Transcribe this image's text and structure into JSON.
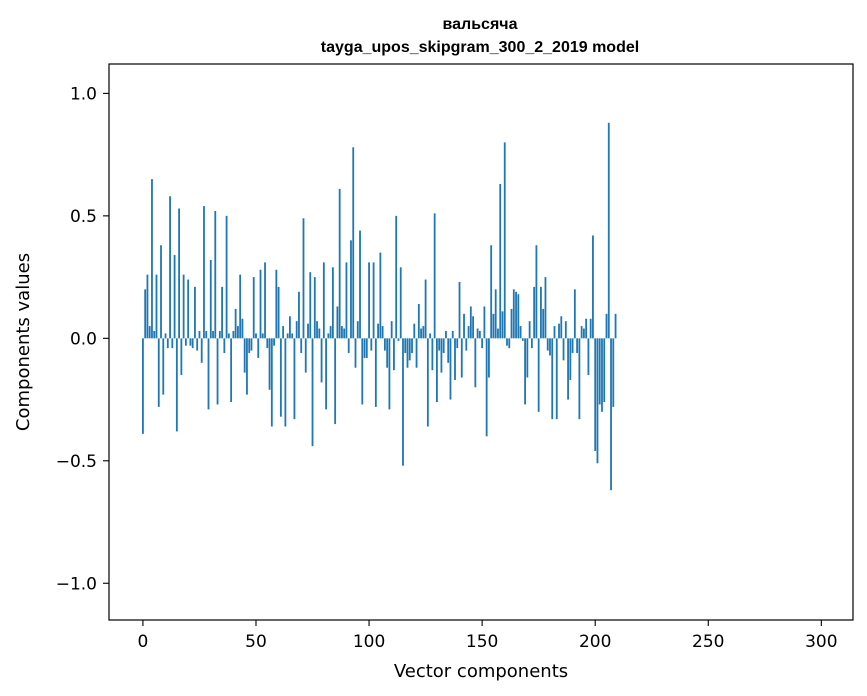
{
  "chart_data": {
    "type": "bar",
    "title": "вальсяча",
    "subtitle": "tayga_upos_skipgram_300_2_2019 model",
    "xlabel": "Vector components",
    "ylabel": "Components values",
    "xlim": [
      -15,
      314
    ],
    "ylim": [
      -1.15,
      1.12
    ],
    "xticks": [
      0,
      50,
      100,
      150,
      200,
      250,
      300
    ],
    "xtick_labels": [
      "0",
      "50",
      "100",
      "150",
      "200",
      "250",
      "300"
    ],
    "yticks": [
      -1.0,
      -0.5,
      0.0,
      0.5,
      1.0
    ],
    "ytick_labels": [
      "−1.0",
      "−0.5",
      "0.0",
      "0.5",
      "1.0"
    ],
    "bar_color": "#1f77b4",
    "grid": false,
    "values": [
      -0.39,
      0.2,
      0.26,
      0.05,
      0.65,
      0.03,
      0.26,
      -0.28,
      0.38,
      -0.23,
      0.02,
      -0.04,
      0.58,
      -0.04,
      0.34,
      -0.38,
      0.53,
      -0.15,
      0.26,
      -0.03,
      0.24,
      -0.03,
      -0.04,
      0.21,
      -0.05,
      0.03,
      -0.1,
      0.54,
      0.03,
      -0.29,
      0.32,
      0.03,
      0.52,
      -0.27,
      0.03,
      0.21,
      -0.06,
      0.5,
      0.02,
      -0.26,
      0.03,
      0.12,
      0.05,
      0.26,
      0.08,
      -0.14,
      -0.23,
      -0.06,
      -0.05,
      0.25,
      0.02,
      -0.08,
      0.28,
      0.02,
      0.31,
      -0.04,
      -0.21,
      -0.36,
      -0.03,
      0.28,
      0.21,
      -0.32,
      0.05,
      -0.36,
      0.02,
      0.09,
      0.02,
      -0.33,
      0.07,
      0.19,
      -0.06,
      0.49,
      -0.14,
      0.06,
      0.27,
      -0.44,
      0.25,
      0.07,
      0.04,
      -0.18,
      0.31,
      -0.29,
      0.02,
      0.05,
      0.29,
      -0.35,
      0.13,
      0.61,
      0.05,
      0.04,
      0.31,
      -0.06,
      0.4,
      0.78,
      -0.12,
      0.07,
      0.44,
      -0.27,
      -0.08,
      -0.08,
      0.31,
      -0.05,
      0.31,
      -0.28,
      0.06,
      0.35,
      0.05,
      -0.05,
      -0.12,
      -0.29,
      0.07,
      -0.13,
      0.5,
      -0.01,
      0.29,
      -0.52,
      -0.06,
      -0.12,
      -0.09,
      -0.06,
      0.06,
      -0.12,
      0.14,
      0.04,
      0.05,
      0.24,
      -0.36,
      0.02,
      -0.13,
      0.51,
      -0.26,
      -0.05,
      -0.14,
      -0.06,
      0.03,
      -0.1,
      -0.25,
      0.03,
      -0.17,
      -0.04,
      0.23,
      -0.16,
      0.1,
      -0.05,
      0.05,
      0.13,
      0.09,
      -0.2,
      0.04,
      0.03,
      -0.04,
      0.13,
      -0.4,
      -0.16,
      0.38,
      0.1,
      0.2,
      0.04,
      0.63,
      0.11,
      0.8,
      -0.03,
      -0.04,
      0.12,
      0.2,
      0.19,
      0.18,
      0.05,
      -0.01,
      -0.27,
      -0.16,
      0.07,
      -0.04,
      0.21,
      0.38,
      -0.3,
      0.21,
      0.12,
      0.25,
      -0.05,
      -0.07,
      -0.33,
      0.05,
      -0.33,
      0.06,
      0.09,
      -0.09,
      0.07,
      -0.25,
      -0.17,
      -0.06,
      0.2,
      -0.06,
      -0.33,
      0.05,
      0.04,
      0.08,
      -0.15,
      0.08,
      0.42,
      -0.46,
      -0.51,
      -0.27,
      -0.3,
      -0.26,
      0.1,
      0.88,
      -0.62,
      -0.28,
      0.1
    ]
  }
}
